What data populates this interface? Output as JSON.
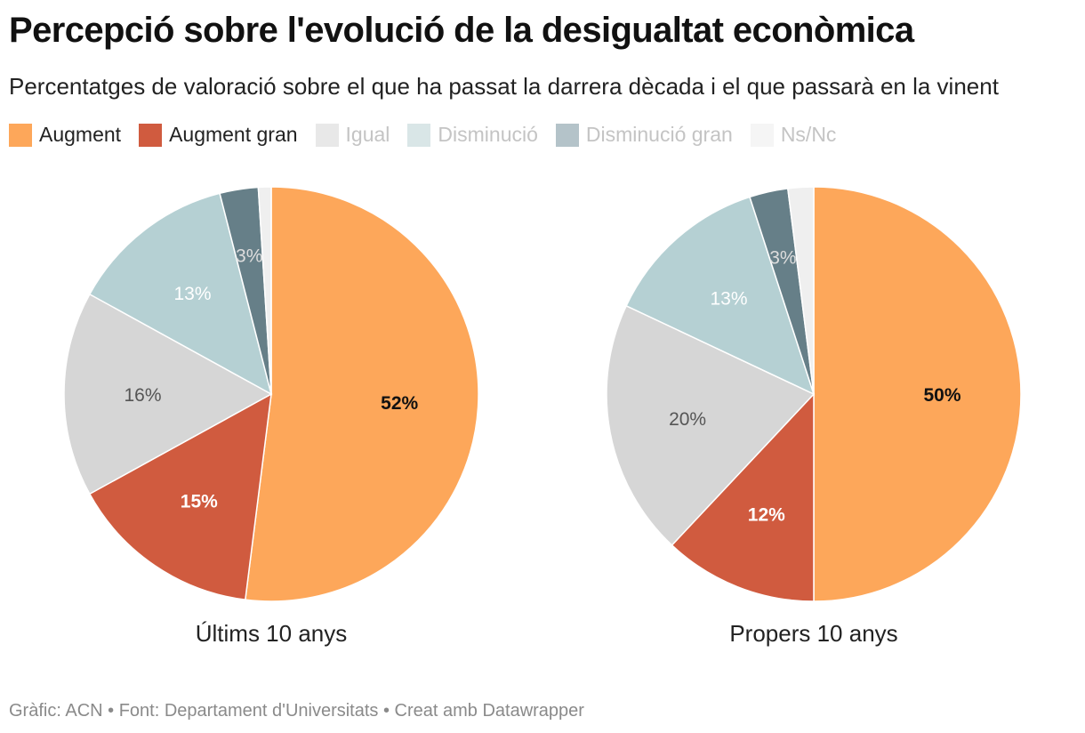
{
  "title": "Percepció sobre l'evolució de la desigualtat econòmica",
  "subtitle": "Percentatges de valoració sobre el que ha passat la darrera dècada i el que passarà en la vinent",
  "legend": [
    {
      "label": "Augment",
      "color": "#fda75a",
      "text_color": "#222222"
    },
    {
      "label": "Augment gran",
      "color": "#d05b3f",
      "text_color": "#222222"
    },
    {
      "label": "Igual",
      "color": "#e8e8e8",
      "text_color": "#c4c4c4"
    },
    {
      "label": "Disminució",
      "color": "#d9e6e7",
      "text_color": "#c4c4c4"
    },
    {
      "label": "Disminució gran",
      "color": "#b4c3c9",
      "text_color": "#c4c4c4"
    },
    {
      "label": "Ns/Nc",
      "color": "#f5f5f5",
      "text_color": "#c4c4c4"
    }
  ],
  "chart_data": [
    {
      "type": "pie",
      "title": "Últims 10 anys",
      "slices": [
        {
          "label": "Augment",
          "value": 52,
          "display": "52%",
          "color": "#fda75a",
          "text_color": "#111111",
          "bold": true
        },
        {
          "label": "Augment gran",
          "value": 15,
          "display": "15%",
          "color": "#d05b3f",
          "text_color": "#ffffff",
          "bold": true
        },
        {
          "label": "Igual",
          "value": 16,
          "display": "16%",
          "color": "#d6d6d6",
          "text_color": "#555555",
          "bold": false
        },
        {
          "label": "Disminució",
          "value": 13,
          "display": "13%",
          "color": "#b5d0d3",
          "text_color": "#ffffff",
          "bold": false
        },
        {
          "label": "Disminució gran",
          "value": 3,
          "display": "3%",
          "color": "#667f88",
          "text_color": "#dddddd",
          "bold": false
        },
        {
          "label": "Ns/Nc",
          "value": 1,
          "display": "",
          "color": "#efefef",
          "text_color": "#ffffff",
          "bold": false
        }
      ]
    },
    {
      "type": "pie",
      "title": "Propers 10 anys",
      "slices": [
        {
          "label": "Augment",
          "value": 50,
          "display": "50%",
          "color": "#fda75a",
          "text_color": "#111111",
          "bold": true
        },
        {
          "label": "Augment gran",
          "value": 12,
          "display": "12%",
          "color": "#d05b3f",
          "text_color": "#ffffff",
          "bold": true
        },
        {
          "label": "Igual",
          "value": 20,
          "display": "20%",
          "color": "#d6d6d6",
          "text_color": "#555555",
          "bold": false
        },
        {
          "label": "Disminució",
          "value": 13,
          "display": "13%",
          "color": "#b5d0d3",
          "text_color": "#ffffff",
          "bold": false
        },
        {
          "label": "Disminució gran",
          "value": 3,
          "display": "3%",
          "color": "#667f88",
          "text_color": "#dddddd",
          "bold": false
        },
        {
          "label": "Ns/Nc",
          "value": 2,
          "display": "",
          "color": "#efefef",
          "text_color": "#ffffff",
          "bold": false
        }
      ]
    }
  ],
  "footer": "Gràfic: ACN • Font: Departament d'Universitats • Creat amb Datawrapper"
}
